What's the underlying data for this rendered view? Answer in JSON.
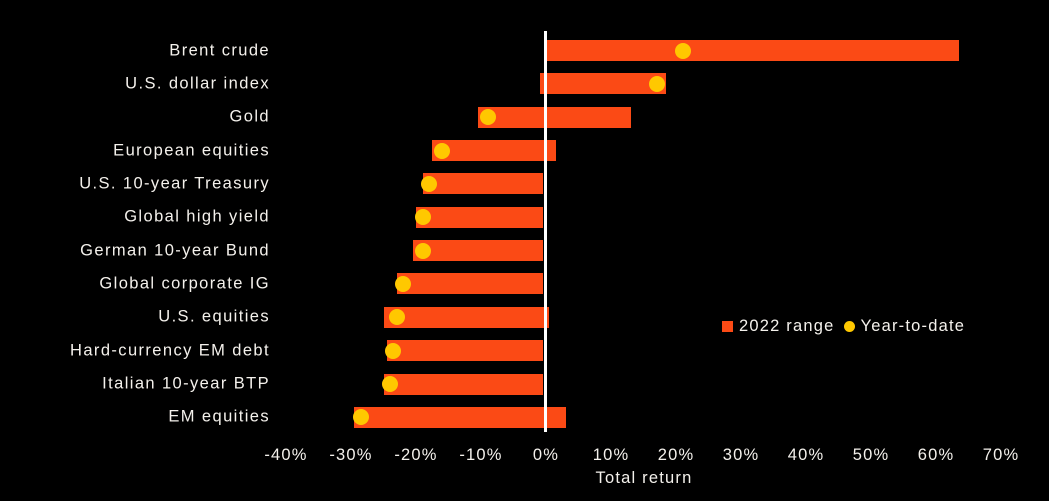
{
  "chart_data": {
    "type": "bar",
    "orientation": "horizontal",
    "title": "",
    "xlabel": "Total return",
    "ylabel": "",
    "xlim": [
      -45,
      75
    ],
    "grid": false,
    "legend_position": "middle-right",
    "x_ticks": [
      {
        "value": -40,
        "label": "-40%"
      },
      {
        "value": -30,
        "label": "-30%"
      },
      {
        "value": -20,
        "label": "-20%"
      },
      {
        "value": -10,
        "label": "-10%"
      },
      {
        "value": 0,
        "label": "0%"
      },
      {
        "value": 10,
        "label": "10%"
      },
      {
        "value": 20,
        "label": "20%"
      },
      {
        "value": 30,
        "label": "30%"
      },
      {
        "value": 40,
        "label": "40%"
      },
      {
        "value": 50,
        "label": "50%"
      },
      {
        "value": 60,
        "label": "60%"
      },
      {
        "value": 70,
        "label": "70%"
      }
    ],
    "legend": [
      {
        "label": "2022 range",
        "swatch": "square-icon",
        "color": "#FB4A15"
      },
      {
        "label": "Year-to-date",
        "swatch": "circle-icon",
        "color": "#FFC800"
      }
    ],
    "series": [
      {
        "name": "2022 range",
        "type": "range_bar",
        "unit": "%",
        "values": [
          [
            0,
            63.5
          ],
          [
            -1,
            18.5
          ],
          [
            -10.5,
            13
          ],
          [
            -17.5,
            1.5
          ],
          [
            -19,
            -0.5
          ],
          [
            -20,
            -0.5
          ],
          [
            -20.5,
            -0.5
          ],
          [
            -23,
            -0.5
          ],
          [
            -25,
            0.5
          ],
          [
            -24.5,
            -0.5
          ],
          [
            -25,
            -0.5
          ],
          [
            -29.5,
            3
          ]
        ]
      },
      {
        "name": "Year-to-date",
        "type": "dot",
        "unit": "%",
        "values": [
          21,
          17,
          -9,
          -16,
          -18,
          -19,
          -19,
          -22,
          -23,
          -23.5,
          -24,
          -28.5
        ]
      }
    ],
    "categories": [
      "Brent crude",
      "U.S. dollar index",
      "Gold",
      "European equities",
      "U.S. 10-year Treasury",
      "Global high yield",
      "German 10-year Bund",
      "Global corporate IG",
      "U.S. equities",
      "Hard-currency EM debt",
      "Italian 10-year BTP",
      "EM equities"
    ],
    "colors": {
      "background": "#000000",
      "bar": "#FB4A15",
      "dot": "#FFC800",
      "zero_line": "#FFFFFF",
      "text": "#F4F1EC"
    }
  }
}
